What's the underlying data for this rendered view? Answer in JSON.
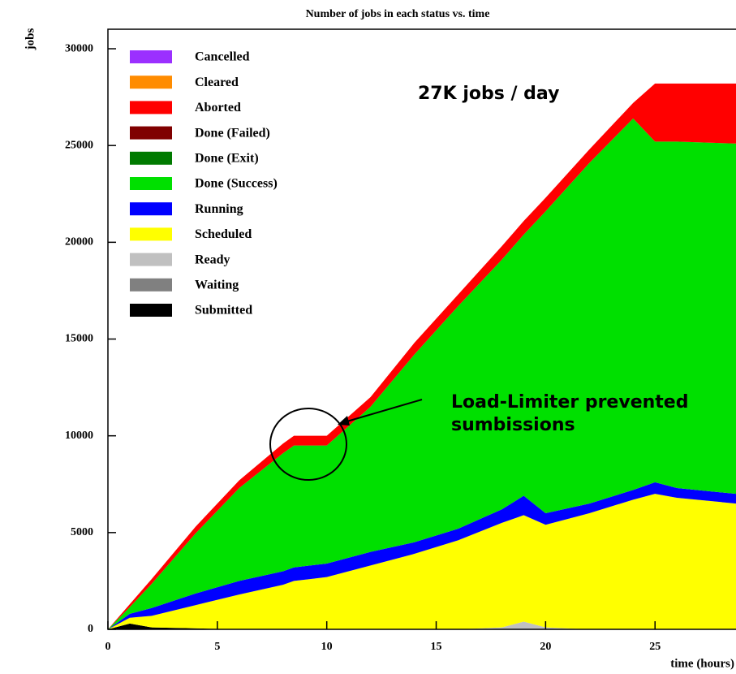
{
  "chart_data": {
    "type": "stacked_area",
    "title": "Number of jobs in each status vs. time",
    "y_label": "jobs",
    "x_label": "time (hours)",
    "annotations": [
      "27K jobs / day",
      "Load-Limiter prevented sumbissions"
    ],
    "x": [
      0,
      1,
      2,
      4,
      6,
      8,
      8.5,
      10,
      12,
      14,
      16,
      18,
      19,
      20,
      22,
      24,
      25,
      26,
      28.7
    ],
    "xlim": [
      0,
      28.7
    ],
    "xticks": [
      0,
      5,
      10,
      15,
      20,
      25
    ],
    "ylim": [
      0,
      31000
    ],
    "yticks": [
      0,
      5000,
      10000,
      15000,
      20000,
      25000,
      30000
    ],
    "series": [
      {
        "name": "Cancelled",
        "color": "#9b30ff",
        "values": [
          0,
          0,
          0,
          0,
          0,
          0,
          0,
          0,
          0,
          0,
          0,
          0,
          0,
          0,
          0,
          0,
          0,
          0,
          0
        ]
      },
      {
        "name": "Cleared",
        "color": "#ff8c00",
        "values": [
          0,
          0,
          0,
          0,
          0,
          0,
          0,
          0,
          0,
          0,
          0,
          0,
          0,
          0,
          0,
          0,
          0,
          0,
          0
        ]
      },
      {
        "name": "Aborted",
        "color": "#ff0000",
        "values": [
          0,
          150,
          250,
          350,
          400,
          500,
          500,
          500,
          500,
          600,
          600,
          700,
          700,
          700,
          700,
          800,
          3000,
          3000,
          3100
        ]
      },
      {
        "name": "Done (Failed)",
        "color": "#800000",
        "values": [
          0,
          0,
          0,
          0,
          0,
          0,
          0,
          0,
          0,
          0,
          0,
          0,
          0,
          0,
          0,
          0,
          0,
          0,
          0
        ]
      },
      {
        "name": "Done (Exit)",
        "color": "#007a00",
        "values": [
          0,
          0,
          0,
          0,
          0,
          0,
          0,
          0,
          0,
          0,
          0,
          0,
          0,
          0,
          0,
          0,
          0,
          0,
          0
        ]
      },
      {
        "name": "Done (Success)",
        "color": "#00e000",
        "values": [
          0,
          350,
          1250,
          3100,
          4800,
          6100,
          6300,
          6100,
          7500,
          9700,
          11500,
          12900,
          13500,
          15600,
          17600,
          19200,
          17600,
          17900,
          18100
        ]
      },
      {
        "name": "Running",
        "color": "#0000ff",
        "values": [
          0,
          200,
          400,
          600,
          700,
          700,
          700,
          700,
          700,
          600,
          600,
          700,
          1000,
          600,
          500,
          500,
          600,
          500,
          500
        ]
      },
      {
        "name": "Scheduled",
        "color": "#ffff00",
        "values": [
          0,
          300,
          600,
          1200,
          1800,
          2300,
          2500,
          2700,
          3300,
          3900,
          4600,
          5400,
          5500,
          5300,
          6000,
          6700,
          7000,
          6800,
          6500
        ]
      },
      {
        "name": "Ready",
        "color": "#c0c0c0",
        "values": [
          0,
          0,
          0,
          0,
          0,
          0,
          0,
          0,
          0,
          0,
          0,
          100,
          400,
          100,
          0,
          0,
          0,
          0,
          0
        ]
      },
      {
        "name": "Waiting",
        "color": "#808080",
        "values": [
          0,
          0,
          0,
          0,
          0,
          0,
          0,
          0,
          0,
          0,
          0,
          0,
          0,
          0,
          0,
          0,
          0,
          0,
          0
        ]
      },
      {
        "name": "Submitted",
        "color": "#000000",
        "values": [
          0,
          300,
          100,
          50,
          0,
          0,
          0,
          0,
          0,
          0,
          0,
          0,
          0,
          0,
          0,
          0,
          0,
          0,
          0
        ]
      }
    ]
  }
}
